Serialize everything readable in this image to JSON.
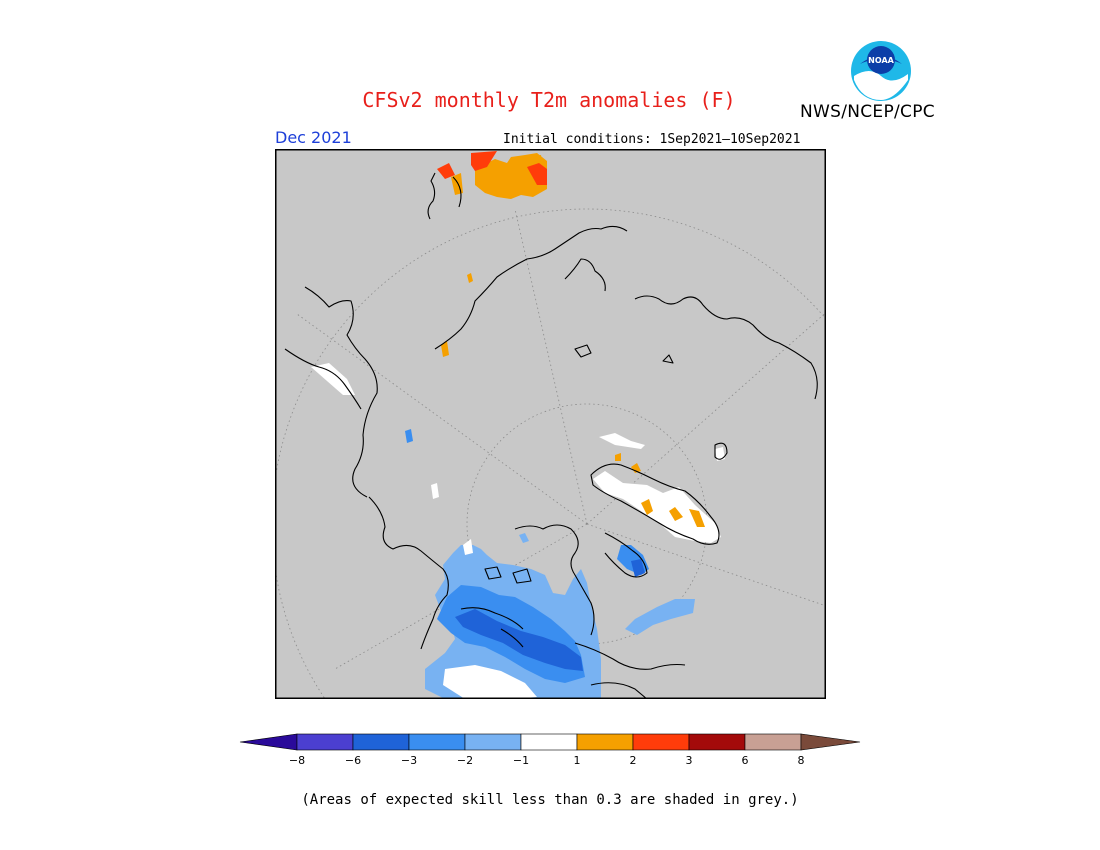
{
  "header": {
    "title": "CFSv2 monthly T2m anomalies (F)",
    "agency": "NWS/NCEP/CPC",
    "month": "Dec 2021",
    "initial_conditions": "Initial conditions: 1Sep2021–10Sep2021",
    "logo_text": "NOAA"
  },
  "map": {
    "projection": "north-polar-stereographic",
    "background_color": "#c8c8c8",
    "coastline_color": "#000000",
    "grid_lines": "dotted"
  },
  "colorbar": {
    "extend": "both",
    "under_color": "#2a0a9a",
    "over_color": "#7a4a3a",
    "bins": [
      {
        "color": "#4b3fd0"
      },
      {
        "color": "#1f63d8"
      },
      {
        "color": "#3a8ef0"
      },
      {
        "color": "#78b2f2"
      },
      {
        "color": "#ffffff"
      },
      {
        "color": "#f5a000"
      },
      {
        "color": "#ff3c0a"
      },
      {
        "color": "#a30a0a"
      },
      {
        "color": "#c8a094"
      }
    ],
    "tick_labels": [
      "−8",
      "−6",
      "−3",
      "−2",
      "−1",
      "1",
      "2",
      "3",
      "6",
      "8"
    ]
  },
  "footer": {
    "note": "(Areas of expected skill less than 0.3 are shaded in grey.)"
  }
}
